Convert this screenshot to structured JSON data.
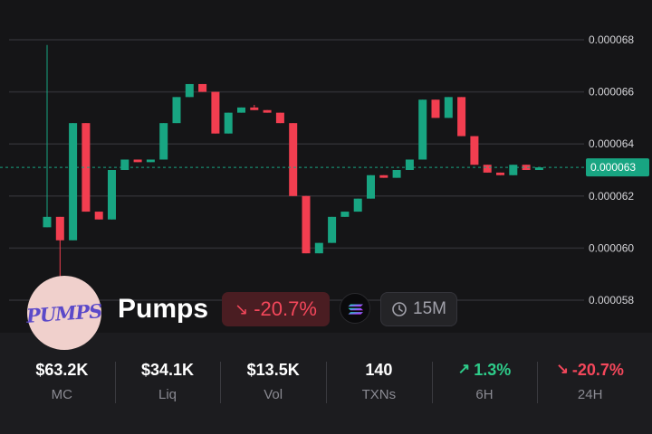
{
  "chart_data": {
    "type": "candlestick",
    "interval": "15M",
    "y_ticks": [
      "0.000068",
      "0.000066",
      "0.000064",
      "0.000062",
      "0.000060",
      "0.000058"
    ],
    "y_tick_values": [
      6.8e-05,
      6.6e-05,
      6.4e-05,
      6.2e-05,
      6e-05,
      5.8e-05
    ],
    "ylim": [
      5.65e-05,
      6.89e-05
    ],
    "grid": true,
    "current_price": 6.31e-05,
    "current_price_label": "0.000063",
    "candles": [
      {
        "o": 6.08e-05,
        "h": 6.78e-05,
        "l": 6.08e-05,
        "c": 6.12e-05
      },
      {
        "o": 6.12e-05,
        "h": 6.12e-05,
        "l": 5.67e-05,
        "c": 6.03e-05
      },
      {
        "o": 6.03e-05,
        "h": 6.48e-05,
        "l": 6.03e-05,
        "c": 6.48e-05
      },
      {
        "o": 6.48e-05,
        "h": 6.48e-05,
        "l": 6.14e-05,
        "c": 6.14e-05
      },
      {
        "o": 6.14e-05,
        "h": 6.14e-05,
        "l": 6.11e-05,
        "c": 6.11e-05
      },
      {
        "o": 6.11e-05,
        "h": 6.3e-05,
        "l": 6.11e-05,
        "c": 6.3e-05
      },
      {
        "o": 6.3e-05,
        "h": 6.34e-05,
        "l": 6.3e-05,
        "c": 6.34e-05
      },
      {
        "o": 6.34e-05,
        "h": 6.34e-05,
        "l": 6.33e-05,
        "c": 6.33e-05
      },
      {
        "o": 6.33e-05,
        "h": 6.34e-05,
        "l": 6.33e-05,
        "c": 6.34e-05
      },
      {
        "o": 6.34e-05,
        "h": 6.48e-05,
        "l": 6.34e-05,
        "c": 6.48e-05
      },
      {
        "o": 6.48e-05,
        "h": 6.58e-05,
        "l": 6.48e-05,
        "c": 6.58e-05
      },
      {
        "o": 6.58e-05,
        "h": 6.63e-05,
        "l": 6.58e-05,
        "c": 6.63e-05
      },
      {
        "o": 6.63e-05,
        "h": 6.63e-05,
        "l": 6.6e-05,
        "c": 6.6e-05
      },
      {
        "o": 6.6e-05,
        "h": 6.6e-05,
        "l": 6.44e-05,
        "c": 6.44e-05
      },
      {
        "o": 6.44e-05,
        "h": 6.52e-05,
        "l": 6.44e-05,
        "c": 6.52e-05
      },
      {
        "o": 6.52e-05,
        "h": 6.54e-05,
        "l": 6.52e-05,
        "c": 6.54e-05
      },
      {
        "o": 6.54e-05,
        "h": 6.55e-05,
        "l": 6.53e-05,
        "c": 6.53e-05
      },
      {
        "o": 6.53e-05,
        "h": 6.53e-05,
        "l": 6.52e-05,
        "c": 6.52e-05
      },
      {
        "o": 6.52e-05,
        "h": 6.52e-05,
        "l": 6.48e-05,
        "c": 6.48e-05
      },
      {
        "o": 6.48e-05,
        "h": 6.48e-05,
        "l": 6.2e-05,
        "c": 6.2e-05
      },
      {
        "o": 6.2e-05,
        "h": 6.2e-05,
        "l": 5.98e-05,
        "c": 5.98e-05
      },
      {
        "o": 5.98e-05,
        "h": 6.02e-05,
        "l": 5.98e-05,
        "c": 6.02e-05
      },
      {
        "o": 6.02e-05,
        "h": 6.12e-05,
        "l": 6.02e-05,
        "c": 6.12e-05
      },
      {
        "o": 6.12e-05,
        "h": 6.14e-05,
        "l": 6.12e-05,
        "c": 6.14e-05
      },
      {
        "o": 6.14e-05,
        "h": 6.19e-05,
        "l": 6.14e-05,
        "c": 6.19e-05
      },
      {
        "o": 6.19e-05,
        "h": 6.28e-05,
        "l": 6.19e-05,
        "c": 6.28e-05
      },
      {
        "o": 6.28e-05,
        "h": 6.28e-05,
        "l": 6.27e-05,
        "c": 6.27e-05
      },
      {
        "o": 6.27e-05,
        "h": 6.3e-05,
        "l": 6.27e-05,
        "c": 6.3e-05
      },
      {
        "o": 6.3e-05,
        "h": 6.34e-05,
        "l": 6.3e-05,
        "c": 6.34e-05
      },
      {
        "o": 6.34e-05,
        "h": 6.57e-05,
        "l": 6.34e-05,
        "c": 6.57e-05
      },
      {
        "o": 6.57e-05,
        "h": 6.57e-05,
        "l": 6.5e-05,
        "c": 6.5e-05
      },
      {
        "o": 6.5e-05,
        "h": 6.58e-05,
        "l": 6.5e-05,
        "c": 6.58e-05
      },
      {
        "o": 6.58e-05,
        "h": 6.58e-05,
        "l": 6.43e-05,
        "c": 6.43e-05
      },
      {
        "o": 6.43e-05,
        "h": 6.43e-05,
        "l": 6.32e-05,
        "c": 6.32e-05
      },
      {
        "o": 6.32e-05,
        "h": 6.32e-05,
        "l": 6.29e-05,
        "c": 6.29e-05
      },
      {
        "o": 6.29e-05,
        "h": 6.29e-05,
        "l": 6.28e-05,
        "c": 6.28e-05
      },
      {
        "o": 6.28e-05,
        "h": 6.32e-05,
        "l": 6.28e-05,
        "c": 6.32e-05
      },
      {
        "o": 6.32e-05,
        "h": 6.32e-05,
        "l": 6.3e-05,
        "c": 6.3e-05
      },
      {
        "o": 6.3e-05,
        "h": 6.31e-05,
        "l": 6.3e-05,
        "c": 6.31e-05
      }
    ]
  },
  "colors": {
    "up": "#18a582",
    "down": "#f23e50",
    "grid": "#2e2e33",
    "price_line": "#18a582"
  },
  "token": {
    "name": "Pumps",
    "logo_text": "PUMPS",
    "change": "-20.7%",
    "chain_icon": "solana-icon",
    "interval": "15M"
  },
  "stats": [
    {
      "value": "$63.2K",
      "label": "MC"
    },
    {
      "value": "$34.1K",
      "label": "Liq"
    },
    {
      "value": "$13.5K",
      "label": "Vol"
    },
    {
      "value": "140",
      "label": "TXNs"
    },
    {
      "value": "1.3%",
      "label": "6H",
      "trend": "up"
    },
    {
      "value": "-20.7%",
      "label": "24H",
      "trend": "down"
    }
  ]
}
